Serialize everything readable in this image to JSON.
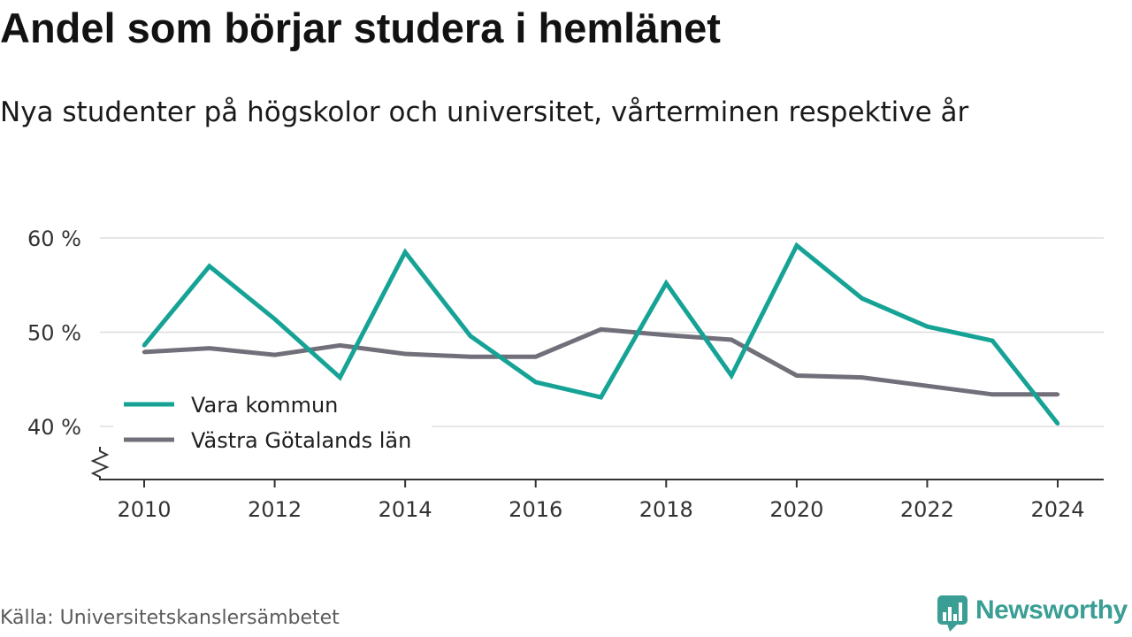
{
  "chart_data": {
    "type": "line",
    "title": "Andel som börjar studera i hemlänet",
    "subtitle": "Nya studenter på högskolor och universitet, vårterminen respektive år",
    "x": [
      2010,
      2011,
      2012,
      2013,
      2014,
      2015,
      2016,
      2017,
      2018,
      2019,
      2020,
      2021,
      2022,
      2023,
      2024
    ],
    "x_ticks": [
      2010,
      2012,
      2014,
      2016,
      2018,
      2020,
      2022,
      2024
    ],
    "x_tick_labels": [
      "2010",
      "2012",
      "2014",
      "2016",
      "2018",
      "2020",
      "2022",
      "2024"
    ],
    "y_ticks": [
      60,
      50,
      40
    ],
    "y_tick_labels": [
      "60 %",
      "50 %",
      "40 %"
    ],
    "xlim": [
      2010,
      2024
    ],
    "ylim": [
      40,
      60
    ],
    "y_axis_break": true,
    "grid": true,
    "legend_position": "left",
    "series": [
      {
        "name": "Vara kommun",
        "color": "#16a396",
        "values": [
          48.6,
          57.0,
          51.4,
          45.2,
          58.5,
          49.6,
          44.7,
          43.1,
          55.2,
          45.4,
          59.2,
          53.6,
          50.6,
          49.1,
          40.3
        ]
      },
      {
        "name": "Västra Götalands län",
        "color": "#716f79",
        "values": [
          47.9,
          48.3,
          47.6,
          48.6,
          47.7,
          47.4,
          47.4,
          50.3,
          49.7,
          49.2,
          45.4,
          45.2,
          44.3,
          43.4,
          43.4
        ]
      }
    ]
  },
  "footer": {
    "source": "Källa: Universitetskanslersämbetet",
    "brand": "Newsworthy",
    "brand_icon": "newsworthy-logo-icon",
    "brand_color": "#3a9e94"
  }
}
